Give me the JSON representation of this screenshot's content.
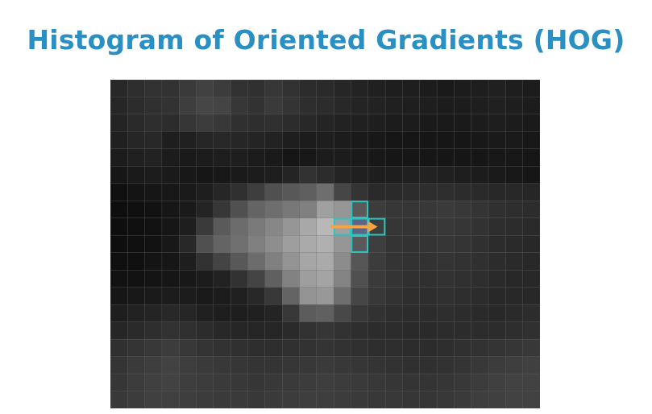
{
  "title": "Histogram of Oriented Gradients (HOG)",
  "colors": {
    "title": "#2a8fc3",
    "window_outline": "#2fc4c0",
    "arrow": "#f4a445",
    "cell_border": "#5a5a5a"
  },
  "pixel_grid": {
    "rows": 19,
    "cols": 25,
    "gray_levels": [
      [
        40,
        46,
        50,
        50,
        58,
        65,
        60,
        50,
        48,
        55,
        50,
        44,
        42,
        38,
        35,
        32,
        30,
        30,
        28,
        26,
        28,
        30,
        32,
        30,
        28
      ],
      [
        38,
        44,
        48,
        50,
        62,
        70,
        68,
        55,
        50,
        58,
        52,
        46,
        44,
        40,
        36,
        34,
        32,
        30,
        30,
        28,
        28,
        30,
        32,
        30,
        28
      ],
      [
        36,
        42,
        46,
        44,
        54,
        60,
        56,
        48,
        46,
        48,
        44,
        40,
        36,
        34,
        32,
        30,
        28,
        28,
        26,
        26,
        26,
        28,
        30,
        28,
        26
      ],
      [
        32,
        38,
        40,
        30,
        32,
        38,
        40,
        38,
        36,
        34,
        30,
        28,
        30,
        28,
        26,
        24,
        22,
        22,
        22,
        22,
        22,
        24,
        26,
        26,
        24
      ],
      [
        28,
        32,
        34,
        28,
        26,
        28,
        30,
        30,
        28,
        26,
        22,
        24,
        28,
        28,
        26,
        24,
        22,
        22,
        22,
        22,
        22,
        22,
        24,
        24,
        22
      ],
      [
        22,
        26,
        28,
        26,
        24,
        22,
        24,
        26,
        28,
        30,
        36,
        50,
        44,
        36,
        32,
        30,
        30,
        32,
        34,
        32,
        30,
        28,
        26,
        24,
        22
      ],
      [
        16,
        20,
        22,
        24,
        26,
        30,
        38,
        48,
        62,
        80,
        88,
        95,
        110,
        70,
        52,
        42,
        42,
        44,
        46,
        46,
        44,
        42,
        40,
        40,
        38
      ],
      [
        14,
        16,
        18,
        22,
        26,
        36,
        55,
        80,
        100,
        110,
        120,
        128,
        160,
        150,
        90,
        60,
        55,
        54,
        56,
        58,
        56,
        52,
        48,
        46,
        44
      ],
      [
        14,
        16,
        18,
        22,
        30,
        58,
        90,
        108,
        122,
        135,
        150,
        168,
        184,
        160,
        96,
        62,
        54,
        52,
        54,
        56,
        54,
        50,
        46,
        44,
        42
      ],
      [
        14,
        16,
        18,
        24,
        40,
        80,
        100,
        112,
        128,
        142,
        158,
        170,
        176,
        150,
        90,
        62,
        52,
        50,
        52,
        54,
        52,
        48,
        44,
        42,
        40
      ],
      [
        16,
        16,
        20,
        22,
        30,
        50,
        68,
        88,
        108,
        128,
        148,
        166,
        170,
        140,
        86,
        60,
        52,
        50,
        50,
        52,
        50,
        48,
        44,
        42,
        40
      ],
      [
        18,
        18,
        20,
        22,
        24,
        28,
        34,
        50,
        68,
        96,
        130,
        158,
        164,
        132,
        80,
        58,
        52,
        48,
        48,
        50,
        48,
        46,
        42,
        40,
        40
      ],
      [
        22,
        24,
        26,
        28,
        28,
        26,
        28,
        32,
        40,
        56,
        100,
        148,
        152,
        110,
        70,
        56,
        50,
        46,
        46,
        48,
        46,
        44,
        40,
        40,
        40
      ],
      [
        30,
        34,
        36,
        40,
        38,
        32,
        30,
        30,
        32,
        36,
        56,
        92,
        96,
        72,
        56,
        50,
        46,
        44,
        44,
        46,
        44,
        42,
        40,
        42,
        44
      ],
      [
        38,
        42,
        46,
        50,
        48,
        44,
        40,
        38,
        38,
        38,
        42,
        50,
        54,
        50,
        46,
        44,
        44,
        42,
        42,
        44,
        44,
        44,
        44,
        46,
        48
      ],
      [
        48,
        52,
        56,
        60,
        56,
        52,
        50,
        48,
        46,
        46,
        48,
        50,
        52,
        50,
        48,
        46,
        46,
        44,
        44,
        46,
        48,
        50,
        52,
        54,
        56
      ],
      [
        52,
        58,
        62,
        66,
        62,
        58,
        56,
        54,
        52,
        52,
        54,
        56,
        58,
        56,
        54,
        52,
        50,
        48,
        48,
        50,
        52,
        56,
        60,
        62,
        64
      ],
      [
        54,
        60,
        64,
        66,
        62,
        60,
        58,
        56,
        54,
        56,
        58,
        60,
        62,
        60,
        58,
        56,
        54,
        52,
        52,
        54,
        56,
        60,
        64,
        66,
        66
      ],
      [
        56,
        60,
        64,
        64,
        62,
        60,
        58,
        58,
        56,
        58,
        60,
        62,
        62,
        60,
        58,
        56,
        56,
        54,
        54,
        56,
        58,
        62,
        64,
        66,
        66
      ]
    ],
    "window": {
      "center_row": 8,
      "center_col": 14
    }
  }
}
